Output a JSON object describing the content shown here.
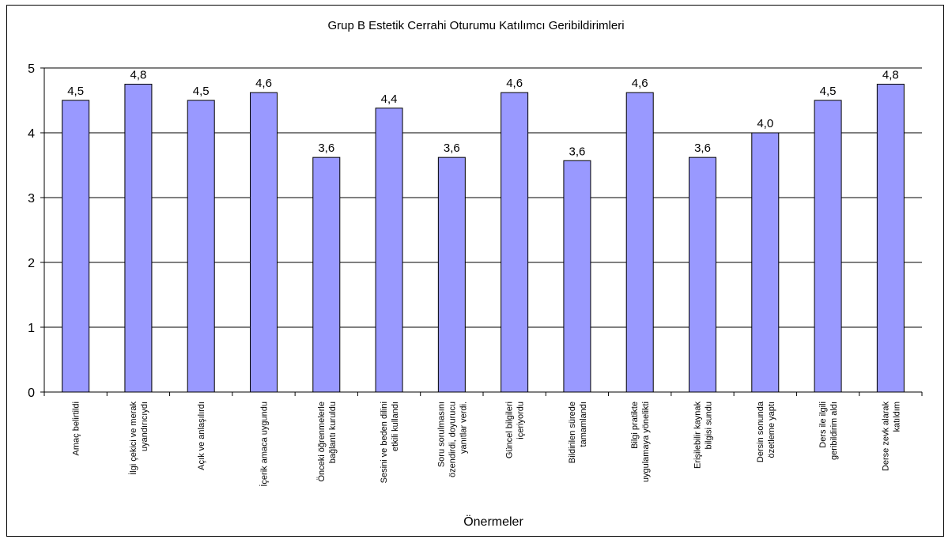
{
  "chart_data": {
    "type": "bar",
    "title": "Grup B Estetik Cerrahi Oturumu Katılımcı Geribildirimleri",
    "xlabel": "Önermeler",
    "ylabel": "",
    "ylim": [
      0,
      5
    ],
    "yticks": [
      "0",
      "1",
      "2",
      "3",
      "4",
      "5"
    ],
    "grid": true,
    "bar_color": "#9999ff",
    "categories": [
      [
        "Amaç belirtildi"
      ],
      [
        "İlgi çekici ve merak",
        "uyandırıcıydı"
      ],
      [
        "Açık ve anlaşılırdı"
      ],
      [
        "İçerik amaca uygundu"
      ],
      [
        "Önceki öğrenmelerle",
        "bağlantı kuruldu"
      ],
      [
        "Sesini ve beden dilini",
        "etkili kullandı"
      ],
      [
        "Soru sorulmasını",
        "özendirdi, doyurucu",
        "yanıtlar verdi."
      ],
      [
        "Güncel bilgileri",
        "içeriyordu"
      ],
      [
        "Bildirilen sürede",
        "tamamlandı"
      ],
      [
        "Bilgi pratikte",
        "uygulamaya yönelikti"
      ],
      [
        "Erişilebilir kaynak",
        "bilgisi sundu"
      ],
      [
        "Dersin sonunda",
        "özetleme yaptı"
      ],
      [
        "Ders ile ilgili",
        "geribildirim aldı"
      ],
      [
        "Derse zevk alarak",
        "katıldım"
      ]
    ],
    "values": [
      4.5,
      4.75,
      4.5,
      4.62,
      3.62,
      4.38,
      3.62,
      4.62,
      3.57,
      4.62,
      3.62,
      4.0,
      4.5,
      4.75
    ],
    "labels": [
      "4,5",
      "4,8",
      "4,5",
      "4,6",
      "3,6",
      "4,4",
      "3,6",
      "4,6",
      "3,6",
      "4,6",
      "3,6",
      "4,0",
      "4,5",
      "4,8"
    ]
  }
}
